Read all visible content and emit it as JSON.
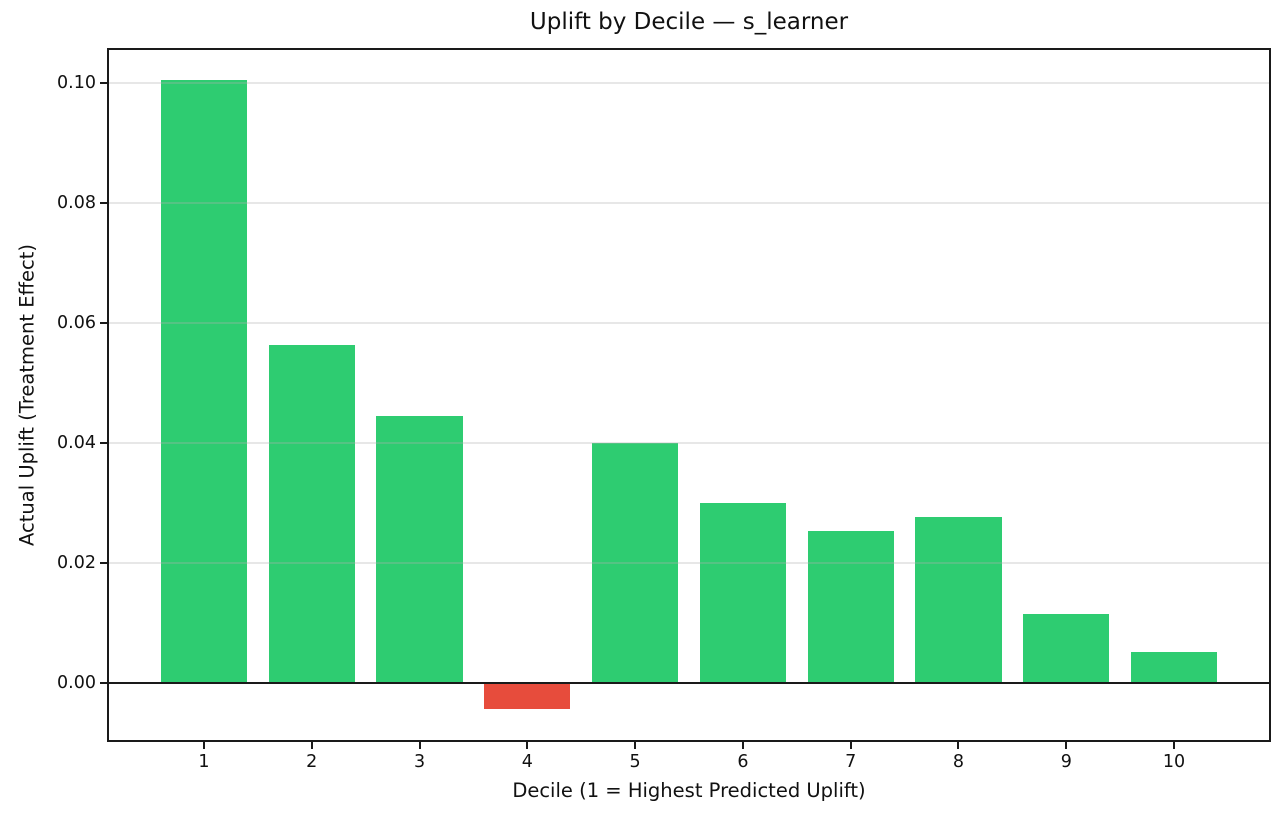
{
  "chart_data": {
    "type": "bar",
    "title": "Uplift by Decile — s_learner",
    "xlabel": "Decile (1 = Highest Predicted Uplift)",
    "ylabel": "Actual Uplift (Treatment Effect)",
    "categories": [
      "1",
      "2",
      "3",
      "4",
      "5",
      "6",
      "7",
      "8",
      "9",
      "10"
    ],
    "values": [
      0.1005,
      0.0564,
      0.0445,
      -0.0043,
      0.0401,
      0.03,
      0.0254,
      0.0277,
      0.0116,
      0.0052
    ],
    "bar_colors": {
      "positive": "#2ecc71",
      "negative": "#e74c3c"
    },
    "yticks": [
      0.0,
      0.02,
      0.04,
      0.06,
      0.08,
      0.1
    ],
    "ytick_labels": [
      "0.00",
      "0.02",
      "0.04",
      "0.06",
      "0.08",
      "0.10"
    ],
    "ylim": [
      -0.0096,
      0.1057
    ],
    "xlim": [
      0.11,
      10.89
    ],
    "bar_width": 0.8,
    "grid": true,
    "grid_axis": "y",
    "zero_line": true,
    "legend": false
  }
}
